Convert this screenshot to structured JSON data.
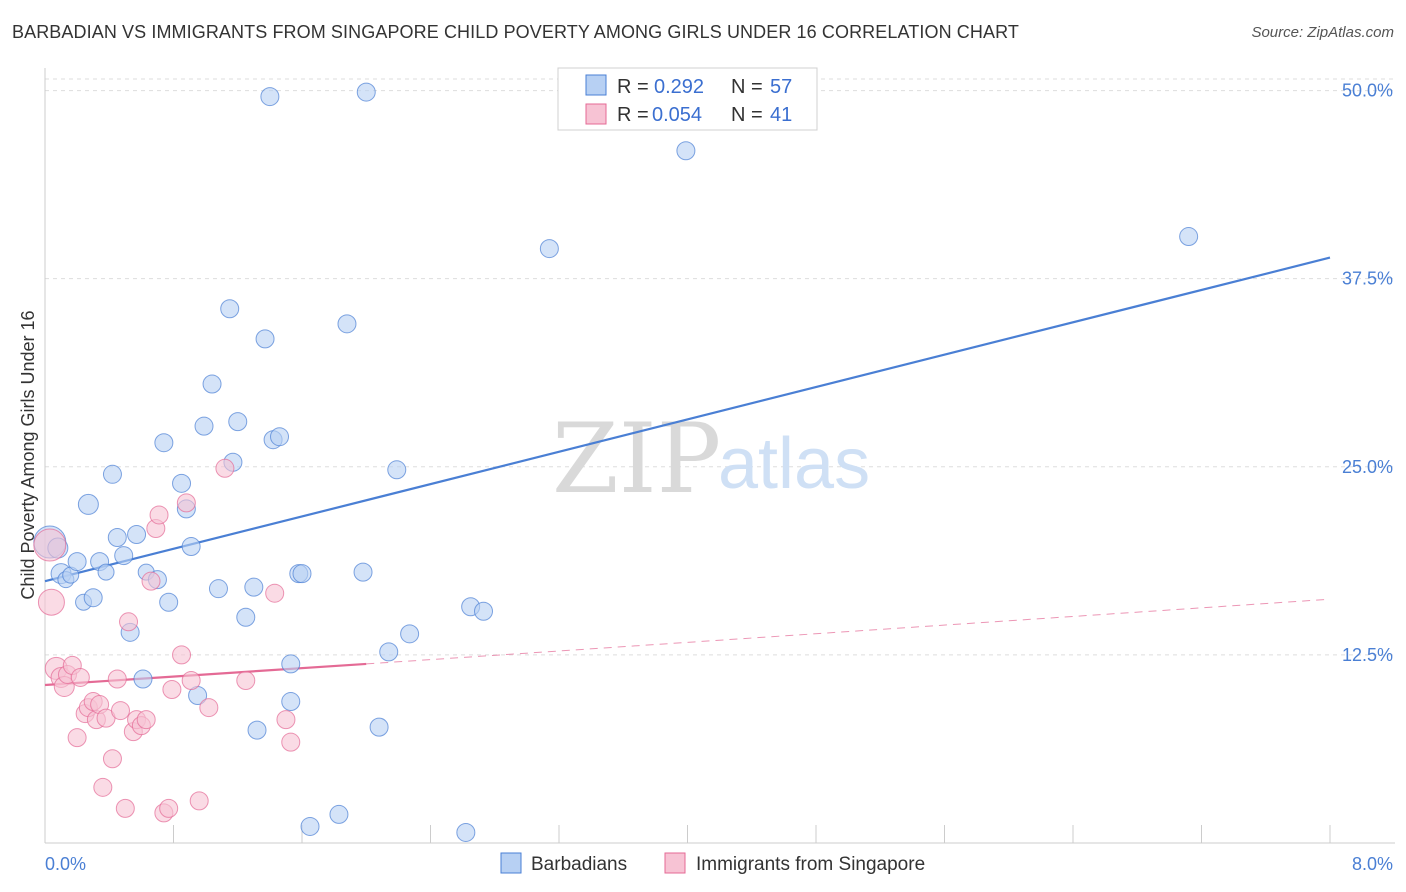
{
  "title": "BARBADIAN VS IMMIGRANTS FROM SINGAPORE CHILD POVERTY AMONG GIRLS UNDER 16 CORRELATION CHART",
  "source": "Source: ZipAtlas.com",
  "watermark": {
    "zip": "ZIP",
    "atlas": "atlas"
  },
  "colors": {
    "blue": "#4a7fd4",
    "blue_fill": "#b7d0f3",
    "pink": "#e46a95",
    "pink_fill": "#f7c3d4",
    "grid": "#dddddd"
  },
  "legend": {
    "r_label": "R =",
    "n_label": "N =",
    "series": [
      {
        "r": "0.292",
        "n": "57"
      },
      {
        "r": "0.054",
        "n": "41"
      }
    ]
  },
  "bottom_legend": [
    "Barbadians",
    "Immigrants from Singapore"
  ],
  "chart_data": {
    "type": "scatter",
    "title": "BARBADIAN VS IMMIGRANTS FROM SINGAPORE CHILD POVERTY AMONG GIRLS UNDER 16 CORRELATION CHART",
    "xlabel": "",
    "ylabel": "Child Poverty Among Girls Under 16",
    "xlim": [
      0,
      8.0
    ],
    "ylim": [
      0,
      51.5
    ],
    "x_tick_labels": [
      "0.0%",
      "8.0%"
    ],
    "y_ticks": [
      12.5,
      25.0,
      37.5,
      50.0
    ],
    "y_tick_labels": [
      "12.5%",
      "25.0%",
      "37.5%",
      "50.0%"
    ],
    "grid": true,
    "series": [
      {
        "name": "Barbadians",
        "color": "#4a7fd4",
        "trend": {
          "x0": 0.0,
          "y0": 17.4,
          "x1": 8.0,
          "y1": 38.9,
          "style": "solid"
        },
        "points": [
          [
            0.03,
            20.0,
            16
          ],
          [
            0.08,
            19.6,
            10
          ],
          [
            0.1,
            17.9,
            10
          ],
          [
            0.13,
            17.5,
            8
          ],
          [
            0.16,
            17.8,
            8
          ],
          [
            0.2,
            18.7,
            9
          ],
          [
            0.24,
            16.0,
            8
          ],
          [
            0.27,
            22.5,
            10
          ],
          [
            0.3,
            16.3,
            9
          ],
          [
            0.34,
            18.7,
            9
          ],
          [
            0.38,
            18.0,
            8
          ],
          [
            0.42,
            24.5,
            9
          ],
          [
            0.45,
            20.3,
            9
          ],
          [
            0.49,
            19.1,
            9
          ],
          [
            0.53,
            14.0,
            9
          ],
          [
            0.57,
            20.5,
            9
          ],
          [
            0.61,
            10.9,
            9
          ],
          [
            0.63,
            18.0,
            8
          ],
          [
            0.7,
            17.5,
            9
          ],
          [
            0.74,
            26.6,
            9
          ],
          [
            0.77,
            16.0,
            9
          ],
          [
            0.85,
            23.9,
            9
          ],
          [
            0.88,
            22.2,
            9
          ],
          [
            0.91,
            19.7,
            9
          ],
          [
            0.95,
            9.8,
            9
          ],
          [
            0.99,
            27.7,
            9
          ],
          [
            1.04,
            30.5,
            9
          ],
          [
            1.08,
            16.9,
            9
          ],
          [
            1.15,
            35.5,
            9
          ],
          [
            1.17,
            25.3,
            9
          ],
          [
            1.2,
            28.0,
            9
          ],
          [
            1.25,
            15.0,
            9
          ],
          [
            1.3,
            17.0,
            9
          ],
          [
            1.32,
            7.5,
            9
          ],
          [
            1.37,
            33.5,
            9
          ],
          [
            1.42,
            26.8,
            9
          ],
          [
            1.46,
            27.0,
            9
          ],
          [
            1.53,
            11.9,
            9
          ],
          [
            1.53,
            9.4,
            9
          ],
          [
            1.58,
            17.9,
            9
          ],
          [
            1.6,
            17.9,
            9
          ],
          [
            1.65,
            1.1,
            9
          ],
          [
            1.83,
            1.9,
            9
          ],
          [
            1.88,
            34.5,
            9
          ],
          [
            1.98,
            18.0,
            9
          ],
          [
            2.08,
            7.7,
            9
          ],
          [
            2.14,
            12.7,
            9
          ],
          [
            2.19,
            24.8,
            9
          ],
          [
            2.27,
            13.9,
            9
          ],
          [
            2.62,
            0.7,
            9
          ],
          [
            2.65,
            15.7,
            9
          ],
          [
            2.73,
            15.4,
            9
          ],
          [
            3.14,
            39.5,
            9
          ],
          [
            3.99,
            46.0,
            9
          ],
          [
            1.4,
            49.6,
            9
          ],
          [
            2.0,
            49.9,
            9
          ],
          [
            7.12,
            40.3,
            9
          ]
        ]
      },
      {
        "name": "Immigrants from Singapore",
        "color": "#e46a95",
        "trend": {
          "x0": 0.0,
          "y0": 10.5,
          "x1": 2.0,
          "y1": 11.9,
          "style": "solid",
          "dash_x1": 8.0,
          "dash_y1": 16.2
        },
        "points": [
          [
            0.03,
            19.8,
            16
          ],
          [
            0.04,
            16.0,
            13
          ],
          [
            0.07,
            11.6,
            11
          ],
          [
            0.1,
            11.0,
            10
          ],
          [
            0.12,
            10.4,
            10
          ],
          [
            0.14,
            11.2,
            9
          ],
          [
            0.17,
            11.8,
            9
          ],
          [
            0.2,
            7.0,
            9
          ],
          [
            0.22,
            11.0,
            9
          ],
          [
            0.25,
            8.6,
            9
          ],
          [
            0.27,
            9.0,
            9
          ],
          [
            0.3,
            9.4,
            9
          ],
          [
            0.32,
            8.2,
            9
          ],
          [
            0.34,
            9.2,
            9
          ],
          [
            0.36,
            3.7,
            9
          ],
          [
            0.38,
            8.3,
            9
          ],
          [
            0.42,
            5.6,
            9
          ],
          [
            0.45,
            10.9,
            9
          ],
          [
            0.47,
            8.8,
            9
          ],
          [
            0.5,
            2.3,
            9
          ],
          [
            0.52,
            14.7,
            9
          ],
          [
            0.55,
            7.4,
            9
          ],
          [
            0.57,
            8.2,
            9
          ],
          [
            0.6,
            7.8,
            9
          ],
          [
            0.63,
            8.2,
            9
          ],
          [
            0.66,
            17.4,
            9
          ],
          [
            0.69,
            20.9,
            9
          ],
          [
            0.71,
            21.8,
            9
          ],
          [
            0.74,
            2.0,
            9
          ],
          [
            0.77,
            2.3,
            9
          ],
          [
            0.79,
            10.2,
            9
          ],
          [
            0.85,
            12.5,
            9
          ],
          [
            0.88,
            22.6,
            9
          ],
          [
            0.91,
            10.8,
            9
          ],
          [
            0.96,
            2.8,
            9
          ],
          [
            1.02,
            9.0,
            9
          ],
          [
            1.12,
            24.9,
            9
          ],
          [
            1.25,
            10.8,
            9
          ],
          [
            1.43,
            16.6,
            9
          ],
          [
            1.5,
            8.2,
            9
          ],
          [
            1.53,
            6.7,
            9
          ]
        ]
      }
    ]
  }
}
